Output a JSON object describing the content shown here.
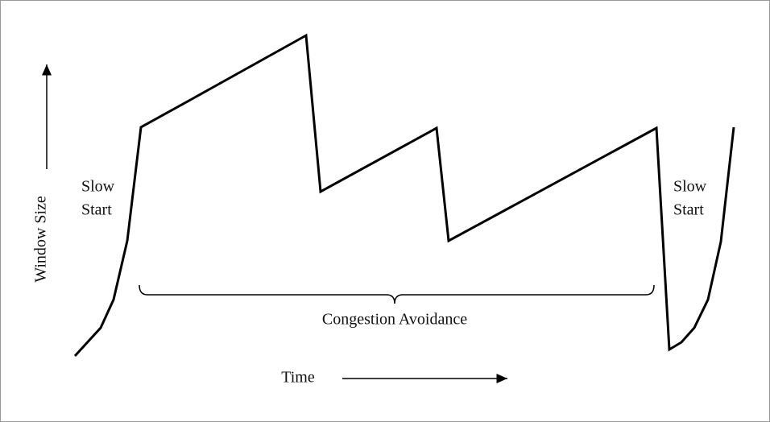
{
  "y_axis_label": "Window Size",
  "x_axis_label": "Time",
  "slow_start_left": [
    "Slow",
    "Start"
  ],
  "slow_start_right": [
    "Slow",
    "Start"
  ],
  "congestion_avoidance": "Congestion Avoidance"
}
